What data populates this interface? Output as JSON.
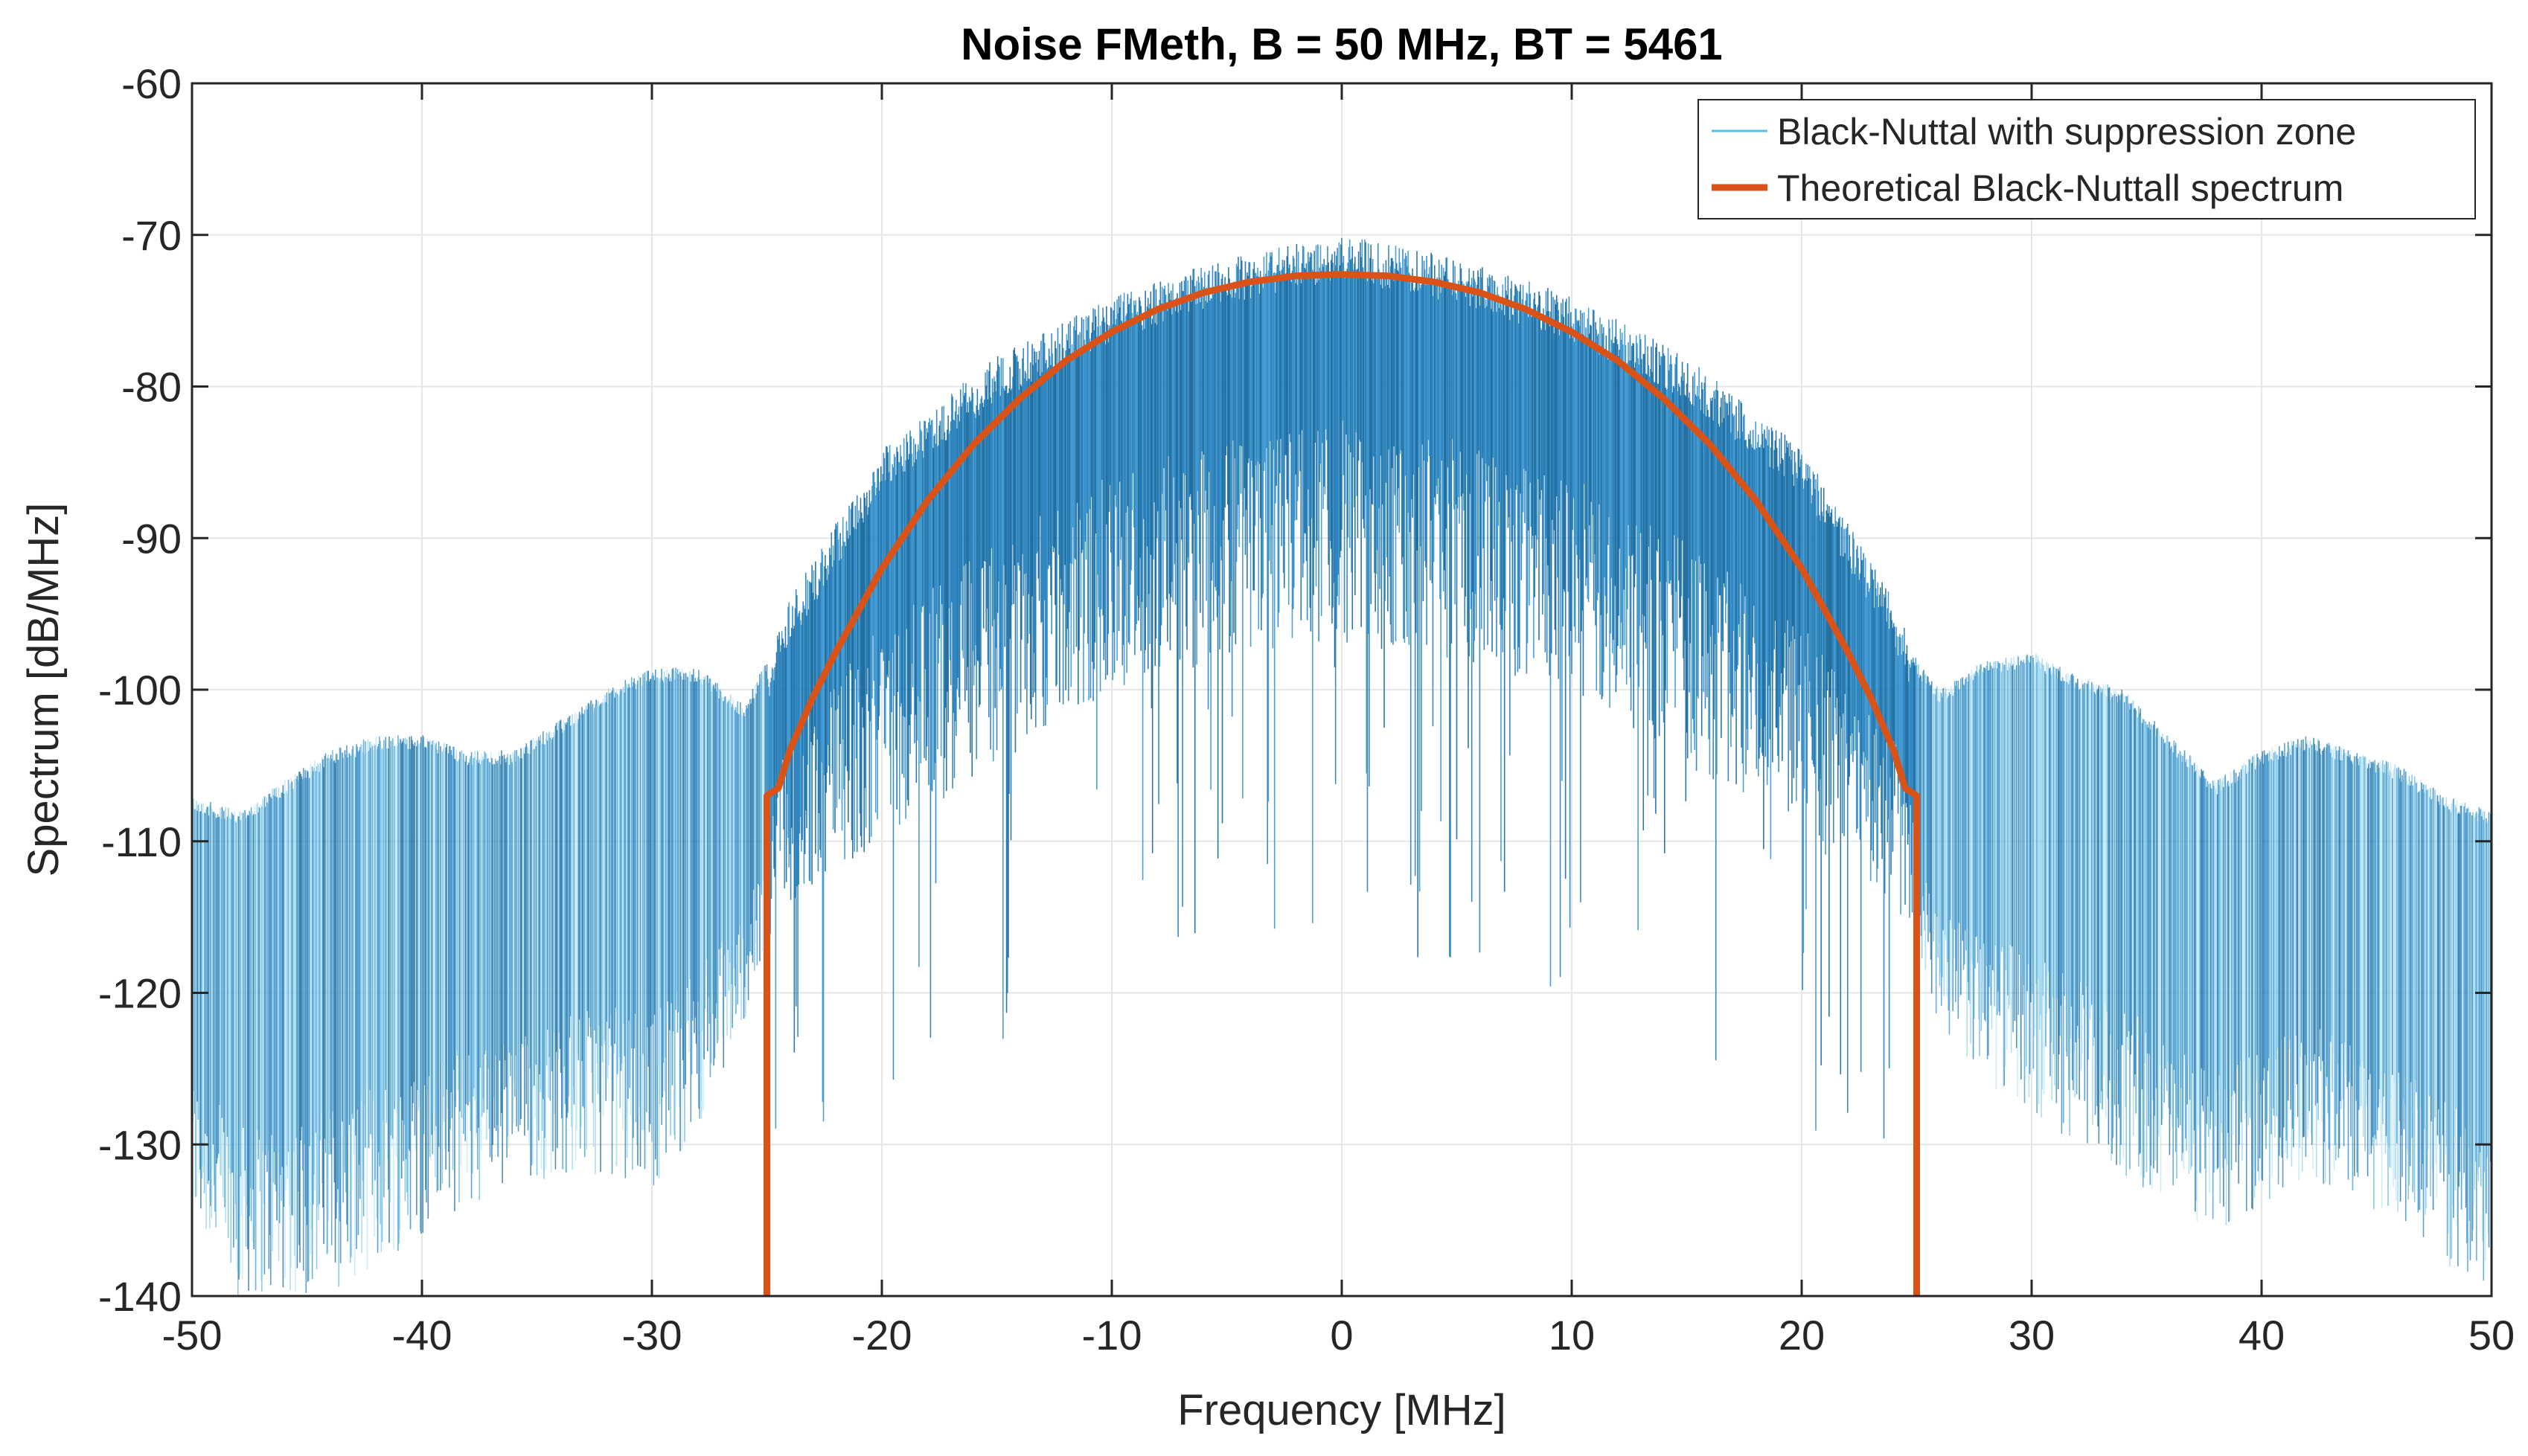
{
  "chart_data": {
    "type": "line",
    "title": "Noise FMeth, B = 50 MHz, BT = 5461",
    "xlabel": "Frequency [MHz]",
    "ylabel": "Spectrum [dB/MHz]",
    "xlim": [
      -50,
      50
    ],
    "ylim": [
      -140,
      -60
    ],
    "xticks": [
      -50,
      -40,
      -30,
      -20,
      -10,
      0,
      10,
      20,
      30,
      40,
      50
    ],
    "yticks": [
      -60,
      -70,
      -80,
      -90,
      -100,
      -110,
      -120,
      -130,
      -140
    ],
    "xtick_labels": [
      "-50",
      "-40",
      "-30",
      "-20",
      "-10",
      "0",
      "10",
      "20",
      "30",
      "40",
      "50"
    ],
    "ytick_labels": [
      "-60",
      "-70",
      "-80",
      "-90",
      "-100",
      "-110",
      "-120",
      "-130",
      "-140"
    ],
    "grid": true,
    "legend_position": "top-right",
    "colors": {
      "measured": "#0072BD",
      "measured_light": "#9fdcf2",
      "theory": "#D95319",
      "grid": "#e6e6e6",
      "axes": "#262626"
    },
    "series": [
      {
        "name": "Black-Nuttal with suppression zone",
        "style": "thin-noisy",
        "upper_envelope": {
          "x": [
            -50,
            -48,
            -46,
            -44,
            -42,
            -40,
            -38,
            -36,
            -34,
            -32,
            -30,
            -28,
            -26,
            -25,
            -24,
            -22,
            -20,
            -15,
            -10,
            -5,
            0,
            5,
            10,
            15,
            20,
            22,
            24,
            25,
            26,
            28,
            30,
            32,
            34,
            36,
            38,
            40,
            42,
            44,
            46,
            48,
            50
          ],
          "y": [
            -107,
            -108,
            -106,
            -104,
            -103,
            -103,
            -104,
            -104,
            -102,
            -100,
            -98.5,
            -98.5,
            -101,
            -98,
            -94,
            -89,
            -84,
            -78,
            -74,
            -71.5,
            -70,
            -71.5,
            -74,
            -78,
            -84,
            -89,
            -94,
            -98,
            -100,
            -98,
            -97.5,
            -99,
            -100,
            -103,
            -106,
            -104,
            -103,
            -104,
            -105,
            -107,
            -108
          ]
        },
        "lower_envelope": {
          "x": [
            -50,
            -48,
            -46,
            -44,
            -42,
            -40,
            -38,
            -36,
            -34,
            -32,
            -30,
            -28,
            -26,
            -25,
            -24,
            -22,
            -20,
            -15,
            -10,
            -5,
            0,
            5,
            10,
            15,
            20,
            22,
            24,
            25,
            26,
            28,
            30,
            32,
            34,
            36,
            38,
            40,
            42,
            44,
            46,
            48,
            50
          ],
          "y": [
            -135,
            -140,
            -140,
            -140,
            -138,
            -136,
            -134,
            -133,
            -132,
            -132,
            -133,
            -129,
            -122,
            -118,
            -114,
            -112,
            -110,
            -105,
            -100,
            -98,
            -97,
            -98,
            -100,
            -105,
            -110,
            -112,
            -114,
            -118,
            -122,
            -126,
            -128,
            -130,
            -132,
            -134,
            -136,
            -134,
            -132,
            -134,
            -135,
            -138,
            -140
          ]
        }
      },
      {
        "name": "Theoretical Black-Nuttall spectrum",
        "style": "thick",
        "x": [
          -25,
          -25,
          -24.5,
          -24,
          -23,
          -22,
          -20,
          -18,
          -16,
          -14,
          -12,
          -10,
          -8,
          -6,
          -4,
          -2,
          0,
          2,
          4,
          6,
          8,
          10,
          12,
          14,
          16,
          18,
          20,
          22,
          23,
          24,
          24.5,
          25,
          25
        ],
        "y": [
          -140,
          -107,
          -106.5,
          -104,
          -100.5,
          -97.5,
          -92,
          -87.5,
          -83.8,
          -80.8,
          -78.3,
          -76.4,
          -74.9,
          -73.8,
          -73.1,
          -72.7,
          -72.6,
          -72.7,
          -73.1,
          -73.8,
          -74.9,
          -76.4,
          -78.3,
          -80.8,
          -83.8,
          -87.5,
          -92,
          -97.5,
          -100.5,
          -104,
          -106.5,
          -107,
          -140
        ]
      }
    ]
  }
}
